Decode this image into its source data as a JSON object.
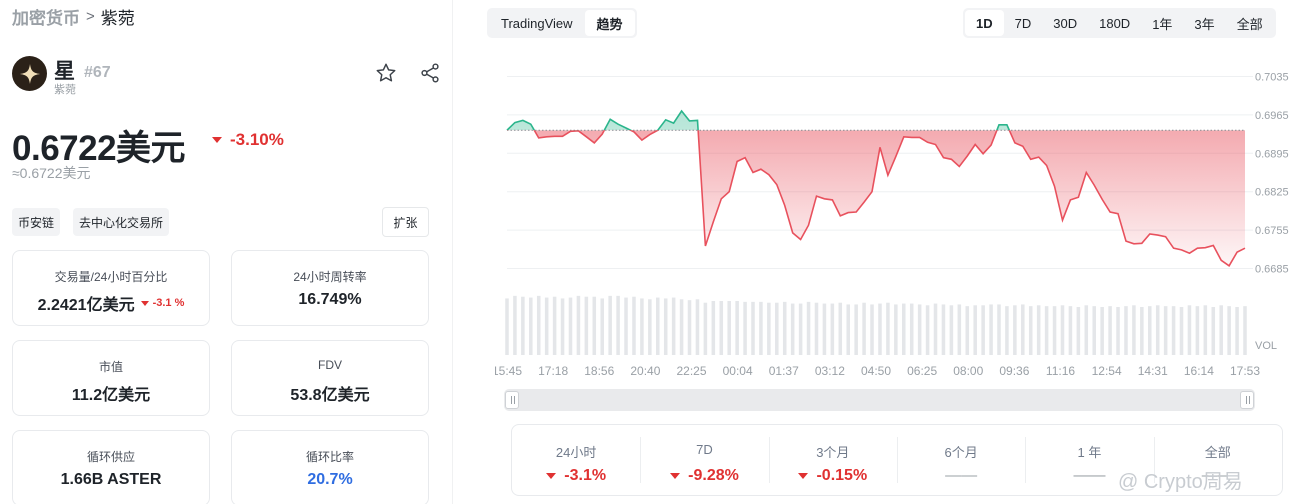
{
  "breadcrumb": {
    "root": "加密货币",
    "separator": ">",
    "current": "紫菀"
  },
  "coin": {
    "name": "星",
    "subname": "紫菀",
    "rank": "#67",
    "logo_icon": "star-logo-icon"
  },
  "price": {
    "value": "0.6722美元",
    "change": "-3.10%",
    "approx": "≈0.6722美元"
  },
  "tags": [
    "币安链",
    "去中心化交易所"
  ],
  "expand_label": "扩张",
  "stats": {
    "volume": {
      "label": "交易量/24小时百分比",
      "value": "2.2421亿美元",
      "change": "-3.1 %"
    },
    "turnover": {
      "label": "24小时周转率",
      "value": "16.749%"
    },
    "market_cap": {
      "label": "市值",
      "value": "11.2亿美元"
    },
    "fdv": {
      "label": "FDV",
      "value": "53.8亿美元"
    },
    "circ_supply": {
      "label": "循环供应",
      "value": "1.66B ASTER"
    },
    "circ_ratio": {
      "label": "循环比率",
      "value": "20.7%"
    }
  },
  "chart_tabs": {
    "items": [
      "TradingView",
      "趋势"
    ],
    "active": "趋势"
  },
  "ranges": {
    "items": [
      "1D",
      "7D",
      "30D",
      "180D",
      "1年",
      "3年",
      "全部"
    ],
    "active": "1D"
  },
  "colors": {
    "up": "#2bb58c",
    "down": "#e8515d",
    "change_red": "#e03131",
    "blue": "#2f6de1"
  },
  "chart_data": {
    "type": "line",
    "title": "",
    "y_ticks": [
      "0.7035",
      "0.6965",
      "0.6895",
      "0.6825",
      "0.6755",
      "0.6685"
    ],
    "volume_label": "VOL",
    "x_ticks": [
      "15:45",
      "17:18",
      "18:56",
      "20:40",
      "22:25",
      "00:04",
      "01:37",
      "03:12",
      "04:50",
      "06:25",
      "08:00",
      "09:36",
      "11:16",
      "12:54",
      "14:31",
      "16:14",
      "17:53"
    ],
    "baseline": 0.6937,
    "ylim": [
      0.6655,
      0.7065
    ],
    "values": [
      0.6937,
      0.6951,
      0.6955,
      0.6948,
      0.6923,
      0.6925,
      0.6926,
      0.6926,
      0.6935,
      0.6936,
      0.6925,
      0.6914,
      0.693,
      0.6957,
      0.6948,
      0.6941,
      0.6934,
      0.6919,
      0.6929,
      0.6937,
      0.6956,
      0.695,
      0.6972,
      0.6954,
      0.6955,
      0.6726,
      0.677,
      0.6812,
      0.6825,
      0.688,
      0.6887,
      0.686,
      0.6866,
      0.6856,
      0.6838,
      0.68,
      0.675,
      0.6738,
      0.6764,
      0.6817,
      0.6812,
      0.681,
      0.6781,
      0.6787,
      0.6788,
      0.6806,
      0.6825,
      0.6906,
      0.6855,
      0.6889,
      0.6925,
      0.6924,
      0.6924,
      0.6915,
      0.6911,
      0.6887,
      0.6884,
      0.6871,
      0.689,
      0.6911,
      0.6894,
      0.691,
      0.6947,
      0.6947,
      0.6914,
      0.6908,
      0.6884,
      0.6888,
      0.6873,
      0.6835,
      0.6773,
      0.681,
      0.6815,
      0.686,
      0.6837,
      0.6811,
      0.6788,
      0.6785,
      0.6735,
      0.673,
      0.6731,
      0.6748,
      0.6746,
      0.6743,
      0.6722,
      0.6719,
      0.6713,
      0.6722,
      0.6723,
      0.6727,
      0.67,
      0.669,
      0.6715,
      0.6722
    ],
    "volume": [
      0.66,
      0.69,
      0.68,
      0.67,
      0.69,
      0.67,
      0.68,
      0.66,
      0.67,
      0.69,
      0.68,
      0.68,
      0.66,
      0.69,
      0.69,
      0.67,
      0.68,
      0.66,
      0.65,
      0.67,
      0.66,
      0.67,
      0.65,
      0.64,
      0.65,
      0.61,
      0.63,
      0.63,
      0.63,
      0.63,
      0.62,
      0.62,
      0.62,
      0.61,
      0.61,
      0.62,
      0.6,
      0.6,
      0.62,
      0.61,
      0.6,
      0.6,
      0.61,
      0.59,
      0.59,
      0.61,
      0.59,
      0.6,
      0.61,
      0.59,
      0.6,
      0.6,
      0.59,
      0.58,
      0.6,
      0.59,
      0.58,
      0.59,
      0.57,
      0.58,
      0.58,
      0.59,
      0.59,
      0.57,
      0.58,
      0.59,
      0.57,
      0.58,
      0.57,
      0.57,
      0.58,
      0.57,
      0.56,
      0.58,
      0.57,
      0.56,
      0.57,
      0.56,
      0.57,
      0.58,
      0.56,
      0.57,
      0.58,
      0.57,
      0.57,
      0.56,
      0.58,
      0.57,
      0.58,
      0.56,
      0.58,
      0.57,
      0.56,
      0.57
    ],
    "grid": true
  },
  "performance": [
    {
      "label": "24小时",
      "value": "-3.1%",
      "direction": "down"
    },
    {
      "label": "7D",
      "value": "-9.28%",
      "direction": "down"
    },
    {
      "label": "3个月",
      "value": "-0.15%",
      "direction": "down"
    },
    {
      "label": "6个月",
      "value": "——",
      "direction": "none"
    },
    {
      "label": "1 年",
      "value": "——",
      "direction": "none"
    },
    {
      "label": "全部",
      "value": "——",
      "direction": "none"
    }
  ],
  "watermark": "@ Crypto周易"
}
